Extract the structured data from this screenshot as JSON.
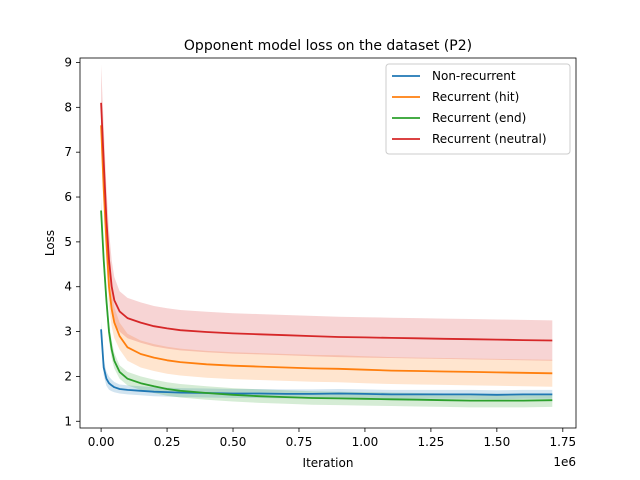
{
  "chart_data": {
    "type": "line",
    "title": "Opponent model loss on the dataset (P2)",
    "xlabel": "Iteration",
    "ylabel": "Loss",
    "x_offset_label": "1e6",
    "xlim": [
      -80000,
      1800000
    ],
    "ylim": [
      0.85,
      9.1
    ],
    "xticks": [
      0,
      250000,
      500000,
      750000,
      1000000,
      1250000,
      1500000,
      1750000
    ],
    "xtick_labels": [
      "0.00",
      "0.25",
      "0.50",
      "0.75",
      "1.00",
      "1.25",
      "1.50",
      "1.75"
    ],
    "yticks": [
      1,
      2,
      3,
      4,
      5,
      6,
      7,
      8,
      9
    ],
    "ytick_labels": [
      "1",
      "2",
      "3",
      "4",
      "5",
      "6",
      "7",
      "8",
      "9"
    ],
    "grid": false,
    "legend_position": "top-right",
    "x": [
      0,
      10000,
      20000,
      30000,
      40000,
      50000,
      70000,
      100000,
      150000,
      200000,
      250000,
      300000,
      400000,
      500000,
      600000,
      700000,
      800000,
      900000,
      1000000,
      1100000,
      1200000,
      1300000,
      1400000,
      1500000,
      1600000,
      1710000
    ],
    "series": [
      {
        "name": "Non-recurrent",
        "color": "#1f77b4",
        "values": [
          3.05,
          2.2,
          1.95,
          1.85,
          1.8,
          1.76,
          1.72,
          1.7,
          1.68,
          1.66,
          1.65,
          1.64,
          1.63,
          1.62,
          1.62,
          1.61,
          1.61,
          1.62,
          1.61,
          1.6,
          1.6,
          1.6,
          1.6,
          1.59,
          1.6,
          1.6
        ],
        "band": 0.1
      },
      {
        "name": "Recurrent (hit)",
        "color": "#ff7f0e",
        "values": [
          7.6,
          6.2,
          5.0,
          4.0,
          3.5,
          3.2,
          2.9,
          2.65,
          2.5,
          2.42,
          2.36,
          2.32,
          2.27,
          2.24,
          2.22,
          2.2,
          2.18,
          2.17,
          2.15,
          2.13,
          2.12,
          2.11,
          2.1,
          2.09,
          2.08,
          2.07
        ],
        "band": 0.3
      },
      {
        "name": "Recurrent (end)",
        "color": "#2ca02c",
        "values": [
          5.7,
          4.6,
          3.7,
          3.0,
          2.6,
          2.35,
          2.1,
          1.95,
          1.85,
          1.78,
          1.72,
          1.68,
          1.63,
          1.59,
          1.56,
          1.54,
          1.52,
          1.51,
          1.5,
          1.49,
          1.48,
          1.47,
          1.46,
          1.46,
          1.46,
          1.47
        ],
        "band": 0.15
      },
      {
        "name": "Recurrent (neutral)",
        "color": "#d62728",
        "values": [
          8.1,
          6.8,
          5.5,
          4.6,
          4.0,
          3.7,
          3.45,
          3.3,
          3.2,
          3.12,
          3.07,
          3.03,
          2.99,
          2.96,
          2.94,
          2.92,
          2.9,
          2.88,
          2.87,
          2.86,
          2.85,
          2.84,
          2.83,
          2.82,
          2.81,
          2.8
        ],
        "band": 0.45
      }
    ]
  }
}
